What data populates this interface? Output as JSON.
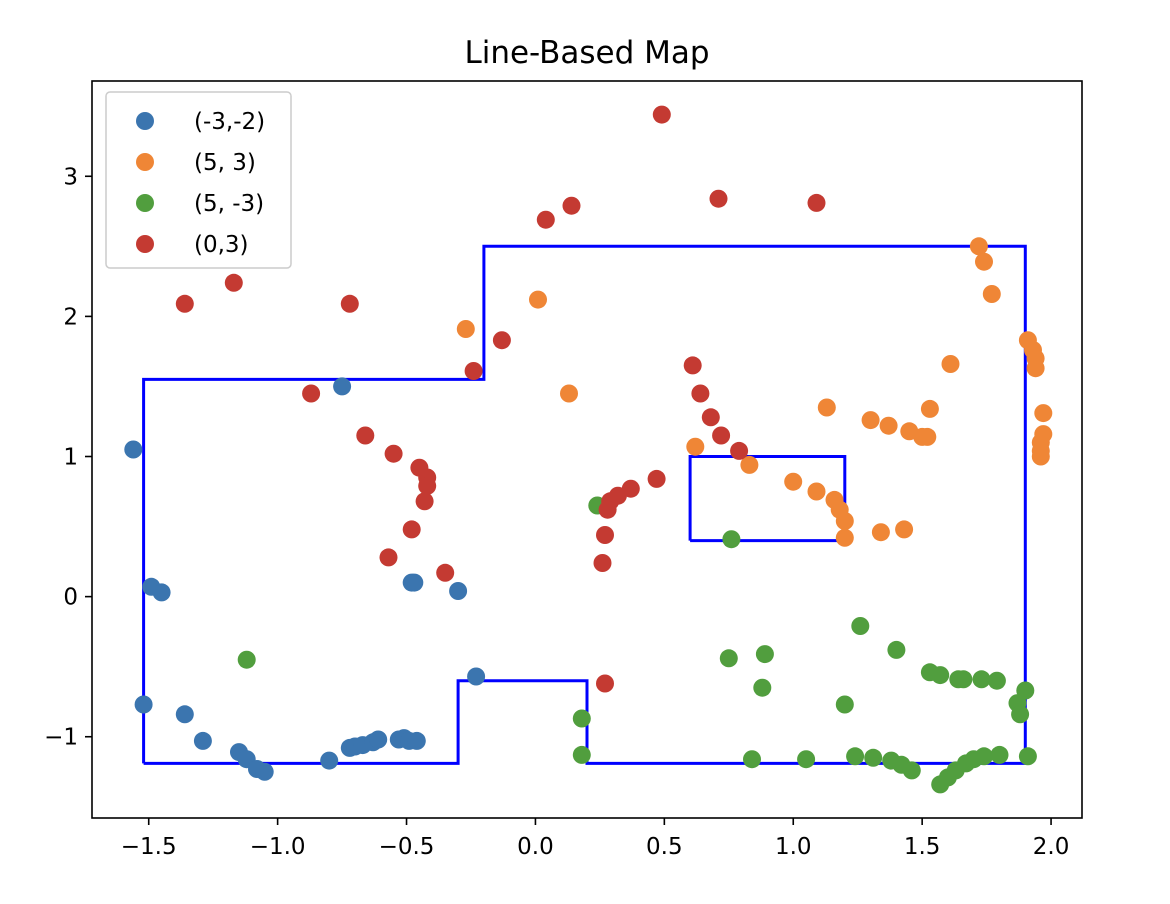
{
  "chart_data": {
    "type": "scatter",
    "title": "Line-Based Map",
    "xlabel": "",
    "ylabel": "",
    "xlim": [
      -1.72,
      2.12
    ],
    "ylim": [
      -1.58,
      3.68
    ],
    "x_ticks": [
      -1.5,
      -1.0,
      -0.5,
      0.0,
      0.5,
      1.0,
      1.5,
      2.0
    ],
    "x_tick_labels": [
      "−1.5",
      "−1.0",
      "−0.5",
      "0.0",
      "0.5",
      "1.0",
      "1.5",
      "2.0"
    ],
    "y_ticks": [
      -1,
      0,
      1,
      2,
      3
    ],
    "y_tick_labels": [
      "−1",
      "0",
      "1",
      "2",
      "3"
    ],
    "grid": false,
    "legend_position": "top-left",
    "series": [
      {
        "name": "(-3,-2)",
        "color": "#3b75af",
        "points": [
          [
            -1.56,
            1.05
          ],
          [
            -0.75,
            1.5
          ],
          [
            -1.49,
            0.07
          ],
          [
            -1.45,
            0.03
          ],
          [
            -0.48,
            0.1
          ],
          [
            -0.47,
            0.1
          ],
          [
            -0.3,
            0.04
          ],
          [
            -0.23,
            -0.57
          ],
          [
            -1.52,
            -0.77
          ],
          [
            -1.36,
            -0.84
          ],
          [
            -1.29,
            -1.03
          ],
          [
            -1.15,
            -1.11
          ],
          [
            -1.12,
            -1.16
          ],
          [
            -1.08,
            -1.23
          ],
          [
            -1.05,
            -1.25
          ],
          [
            -0.8,
            -1.17
          ],
          [
            -0.72,
            -1.08
          ],
          [
            -0.7,
            -1.07
          ],
          [
            -0.67,
            -1.06
          ],
          [
            -0.63,
            -1.04
          ],
          [
            -0.61,
            -1.02
          ],
          [
            -0.53,
            -1.02
          ],
          [
            -0.51,
            -1.01
          ],
          [
            -0.49,
            -1.03
          ],
          [
            -0.46,
            -1.03
          ]
        ]
      },
      {
        "name": "(5, 3)",
        "color": "#ef8636",
        "points": [
          [
            1.72,
            2.5
          ],
          [
            1.74,
            2.39
          ],
          [
            1.77,
            2.16
          ],
          [
            0.01,
            2.12
          ],
          [
            -0.27,
            1.91
          ],
          [
            1.91,
            1.83
          ],
          [
            1.93,
            1.76
          ],
          [
            1.94,
            1.7
          ],
          [
            1.94,
            1.63
          ],
          [
            1.61,
            1.66
          ],
          [
            0.13,
            1.45
          ],
          [
            1.13,
            1.35
          ],
          [
            1.53,
            1.34
          ],
          [
            1.97,
            1.31
          ],
          [
            1.3,
            1.26
          ],
          [
            1.37,
            1.22
          ],
          [
            1.45,
            1.18
          ],
          [
            1.5,
            1.14
          ],
          [
            1.52,
            1.14
          ],
          [
            1.97,
            1.16
          ],
          [
            1.96,
            1.1
          ],
          [
            1.96,
            1.04
          ],
          [
            1.96,
            1.0
          ],
          [
            0.62,
            1.07
          ],
          [
            0.83,
            0.94
          ],
          [
            1.0,
            0.82
          ],
          [
            1.09,
            0.75
          ],
          [
            1.16,
            0.69
          ],
          [
            1.18,
            0.62
          ],
          [
            1.2,
            0.54
          ],
          [
            1.2,
            0.42
          ],
          [
            1.34,
            0.46
          ],
          [
            1.43,
            0.48
          ]
        ]
      },
      {
        "name": "(5, -3)",
        "color": "#519e3e",
        "points": [
          [
            0.24,
            0.65
          ],
          [
            0.76,
            0.41
          ],
          [
            -1.12,
            -0.45
          ],
          [
            1.26,
            -0.21
          ],
          [
            1.4,
            -0.38
          ],
          [
            0.75,
            -0.44
          ],
          [
            0.89,
            -0.41
          ],
          [
            0.88,
            -0.65
          ],
          [
            1.2,
            -0.77
          ],
          [
            1.53,
            -0.54
          ],
          [
            1.57,
            -0.56
          ],
          [
            1.64,
            -0.59
          ],
          [
            1.66,
            -0.59
          ],
          [
            1.73,
            -0.59
          ],
          [
            1.79,
            -0.6
          ],
          [
            1.87,
            -0.76
          ],
          [
            1.9,
            -0.67
          ],
          [
            1.88,
            -0.84
          ],
          [
            0.18,
            -0.87
          ],
          [
            0.18,
            -1.13
          ],
          [
            0.84,
            -1.16
          ],
          [
            1.05,
            -1.16
          ],
          [
            1.24,
            -1.14
          ],
          [
            1.31,
            -1.15
          ],
          [
            1.38,
            -1.17
          ],
          [
            1.42,
            -1.2
          ],
          [
            1.46,
            -1.24
          ],
          [
            1.57,
            -1.34
          ],
          [
            1.6,
            -1.29
          ],
          [
            1.63,
            -1.24
          ],
          [
            1.67,
            -1.19
          ],
          [
            1.7,
            -1.16
          ],
          [
            1.74,
            -1.14
          ],
          [
            1.8,
            -1.13
          ],
          [
            1.91,
            -1.14
          ]
        ]
      },
      {
        "name": "(0,3)",
        "color": "#c43a32",
        "points": [
          [
            0.49,
            3.44
          ],
          [
            0.71,
            2.84
          ],
          [
            1.09,
            2.81
          ],
          [
            0.14,
            2.79
          ],
          [
            0.04,
            2.69
          ],
          [
            -1.17,
            2.24
          ],
          [
            -1.36,
            2.09
          ],
          [
            -0.72,
            2.09
          ],
          [
            -0.13,
            1.83
          ],
          [
            -0.24,
            1.61
          ],
          [
            -0.87,
            1.45
          ],
          [
            0.61,
            1.65
          ],
          [
            0.64,
            1.45
          ],
          [
            0.68,
            1.28
          ],
          [
            0.72,
            1.15
          ],
          [
            0.79,
            1.04
          ],
          [
            -0.66,
            1.15
          ],
          [
            -0.55,
            1.02
          ],
          [
            -0.45,
            0.92
          ],
          [
            -0.42,
            0.85
          ],
          [
            -0.42,
            0.79
          ],
          [
            -0.43,
            0.68
          ],
          [
            -0.48,
            0.48
          ],
          [
            -0.57,
            0.28
          ],
          [
            -0.35,
            0.17
          ],
          [
            0.47,
            0.84
          ],
          [
            0.37,
            0.77
          ],
          [
            0.32,
            0.72
          ],
          [
            0.29,
            0.68
          ],
          [
            0.28,
            0.62
          ],
          [
            0.27,
            0.44
          ],
          [
            0.26,
            0.24
          ],
          [
            0.27,
            -0.62
          ]
        ]
      }
    ],
    "lines": [
      {
        "color": "#0000ff",
        "points": [
          [
            -1.52,
            -1.19
          ],
          [
            -1.52,
            1.55
          ],
          [
            -0.2,
            1.55
          ],
          [
            -0.2,
            2.5
          ],
          [
            1.9,
            2.5
          ],
          [
            1.9,
            -1.19
          ],
          [
            0.2,
            -1.19
          ],
          [
            0.2,
            -0.6
          ],
          [
            -0.3,
            -0.6
          ],
          [
            -0.3,
            -1.19
          ],
          [
            -1.52,
            -1.19
          ]
        ]
      },
      {
        "color": "#0000ff",
        "points": [
          [
            0.6,
            0.4
          ],
          [
            0.6,
            1.0
          ],
          [
            1.2,
            1.0
          ],
          [
            1.2,
            0.4
          ],
          [
            0.6,
            0.4
          ]
        ]
      }
    ]
  }
}
